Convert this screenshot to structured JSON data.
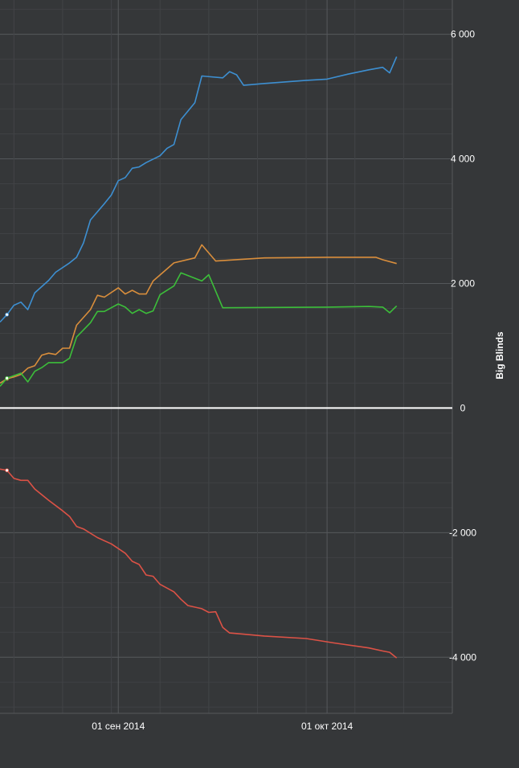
{
  "chart_data": {
    "type": "line",
    "title": "",
    "xlabel": "",
    "ylabel": "Big Blinds",
    "ylim": [
      -4900,
      6550
    ],
    "xlim": [
      "2014-08-15",
      "2014-10-19"
    ],
    "y_ticks": [
      {
        "value": 6000,
        "label": "6 000"
      },
      {
        "value": 4000,
        "label": "4 000"
      },
      {
        "value": 2000,
        "label": "2 000"
      },
      {
        "value": 0,
        "label": "0"
      },
      {
        "value": -2000,
        "label": "-2 000"
      },
      {
        "value": -4000,
        "label": "-4 000"
      }
    ],
    "x_ticks": [
      {
        "value": "2014-09-01",
        "label": "01 сен 2014"
      },
      {
        "value": "2014-10-01",
        "label": "01 окт 2014"
      }
    ],
    "grid": true,
    "legend": "none",
    "series": [
      {
        "color": "#3d8fd1",
        "points": [
          [
            "2014-08-15",
            1380
          ],
          [
            "2014-08-16",
            1500
          ],
          [
            "2014-08-17",
            1650
          ],
          [
            "2014-08-18",
            1700
          ],
          [
            "2014-08-19",
            1580
          ],
          [
            "2014-08-20",
            1850
          ],
          [
            "2014-08-22",
            2050
          ],
          [
            "2014-08-23",
            2180
          ],
          [
            "2014-08-25",
            2330
          ],
          [
            "2014-08-26",
            2420
          ],
          [
            "2014-08-27",
            2650
          ],
          [
            "2014-08-28",
            3020
          ],
          [
            "2014-08-30",
            3280
          ],
          [
            "2014-08-31",
            3420
          ],
          [
            "2014-09-01",
            3650
          ],
          [
            "2014-09-02",
            3700
          ],
          [
            "2014-09-03",
            3850
          ],
          [
            "2014-09-04",
            3870
          ],
          [
            "2014-09-05",
            3940
          ],
          [
            "2014-09-07",
            4050
          ],
          [
            "2014-09-08",
            4170
          ],
          [
            "2014-09-09",
            4230
          ],
          [
            "2014-09-10",
            4630
          ],
          [
            "2014-09-12",
            4900
          ],
          [
            "2014-09-13",
            5330
          ],
          [
            "2014-09-16",
            5300
          ],
          [
            "2014-09-17",
            5400
          ],
          [
            "2014-09-18",
            5350
          ],
          [
            "2014-09-19",
            5180
          ],
          [
            "2014-09-22",
            5210
          ],
          [
            "2014-09-28",
            5260
          ],
          [
            "2014-10-01",
            5280
          ],
          [
            "2014-10-04",
            5360
          ],
          [
            "2014-10-07",
            5430
          ],
          [
            "2014-10-09",
            5470
          ],
          [
            "2014-10-10",
            5380
          ],
          [
            "2014-10-11",
            5640
          ]
        ]
      },
      {
        "color": "#d98e3c",
        "points": [
          [
            "2014-08-15",
            400
          ],
          [
            "2014-08-16",
            470
          ],
          [
            "2014-08-17",
            500
          ],
          [
            "2014-08-18",
            540
          ],
          [
            "2014-08-19",
            640
          ],
          [
            "2014-08-20",
            680
          ],
          [
            "2014-08-21",
            850
          ],
          [
            "2014-08-22",
            880
          ],
          [
            "2014-08-23",
            860
          ],
          [
            "2014-08-24",
            960
          ],
          [
            "2014-08-25",
            960
          ],
          [
            "2014-08-26",
            1330
          ],
          [
            "2014-08-28",
            1580
          ],
          [
            "2014-08-29",
            1810
          ],
          [
            "2014-08-30",
            1780
          ],
          [
            "2014-09-01",
            1930
          ],
          [
            "2014-09-02",
            1830
          ],
          [
            "2014-09-03",
            1890
          ],
          [
            "2014-09-04",
            1830
          ],
          [
            "2014-09-05",
            1830
          ],
          [
            "2014-09-06",
            2040
          ],
          [
            "2014-09-09",
            2330
          ],
          [
            "2014-09-12",
            2410
          ],
          [
            "2014-09-13",
            2620
          ],
          [
            "2014-09-15",
            2360
          ],
          [
            "2014-09-22",
            2410
          ],
          [
            "2014-10-01",
            2420
          ],
          [
            "2014-10-08",
            2420
          ],
          [
            "2014-10-09",
            2380
          ],
          [
            "2014-10-11",
            2320
          ]
        ]
      },
      {
        "color": "#3cbe3a",
        "points": [
          [
            "2014-08-15",
            350
          ],
          [
            "2014-08-16",
            480
          ],
          [
            "2014-08-17",
            520
          ],
          [
            "2014-08-18",
            560
          ],
          [
            "2014-08-19",
            420
          ],
          [
            "2014-08-20",
            590
          ],
          [
            "2014-08-21",
            650
          ],
          [
            "2014-08-22",
            730
          ],
          [
            "2014-08-23",
            730
          ],
          [
            "2014-08-24",
            730
          ],
          [
            "2014-08-25",
            800
          ],
          [
            "2014-08-26",
            1140
          ],
          [
            "2014-08-28",
            1370
          ],
          [
            "2014-08-29",
            1550
          ],
          [
            "2014-08-30",
            1550
          ],
          [
            "2014-09-01",
            1670
          ],
          [
            "2014-09-02",
            1620
          ],
          [
            "2014-09-03",
            1520
          ],
          [
            "2014-09-04",
            1580
          ],
          [
            "2014-09-05",
            1520
          ],
          [
            "2014-09-06",
            1560
          ],
          [
            "2014-09-07",
            1820
          ],
          [
            "2014-09-09",
            1960
          ],
          [
            "2014-09-10",
            2170
          ],
          [
            "2014-09-13",
            2040
          ],
          [
            "2014-09-14",
            2140
          ],
          [
            "2014-09-16",
            1610
          ],
          [
            "2014-10-01",
            1620
          ],
          [
            "2014-10-07",
            1630
          ],
          [
            "2014-10-09",
            1620
          ],
          [
            "2014-10-10",
            1530
          ],
          [
            "2014-10-11",
            1640
          ]
        ]
      },
      {
        "color": "#dc5246",
        "points": [
          [
            "2014-08-15",
            -980
          ],
          [
            "2014-08-16",
            -1000
          ],
          [
            "2014-08-17",
            -1130
          ],
          [
            "2014-08-18",
            -1160
          ],
          [
            "2014-08-19",
            -1160
          ],
          [
            "2014-08-20",
            -1300
          ],
          [
            "2014-08-22",
            -1480
          ],
          [
            "2014-08-24",
            -1650
          ],
          [
            "2014-08-25",
            -1740
          ],
          [
            "2014-08-26",
            -1900
          ],
          [
            "2014-08-27",
            -1940
          ],
          [
            "2014-08-29",
            -2080
          ],
          [
            "2014-08-31",
            -2180
          ],
          [
            "2014-09-02",
            -2330
          ],
          [
            "2014-09-03",
            -2460
          ],
          [
            "2014-09-04",
            -2510
          ],
          [
            "2014-09-05",
            -2680
          ],
          [
            "2014-09-06",
            -2700
          ],
          [
            "2014-09-07",
            -2830
          ],
          [
            "2014-09-09",
            -2950
          ],
          [
            "2014-09-10",
            -3070
          ],
          [
            "2014-09-11",
            -3170
          ],
          [
            "2014-09-13",
            -3220
          ],
          [
            "2014-09-14",
            -3280
          ],
          [
            "2014-09-15",
            -3270
          ],
          [
            "2014-09-16",
            -3520
          ],
          [
            "2014-09-17",
            -3610
          ],
          [
            "2014-09-19",
            -3630
          ],
          [
            "2014-09-22",
            -3660
          ],
          [
            "2014-09-28",
            -3700
          ],
          [
            "2014-10-02",
            -3770
          ],
          [
            "2014-10-07",
            -3850
          ],
          [
            "2014-10-09",
            -3900
          ],
          [
            "2014-10-10",
            -3920
          ],
          [
            "2014-10-11",
            -4010
          ]
        ]
      }
    ]
  }
}
